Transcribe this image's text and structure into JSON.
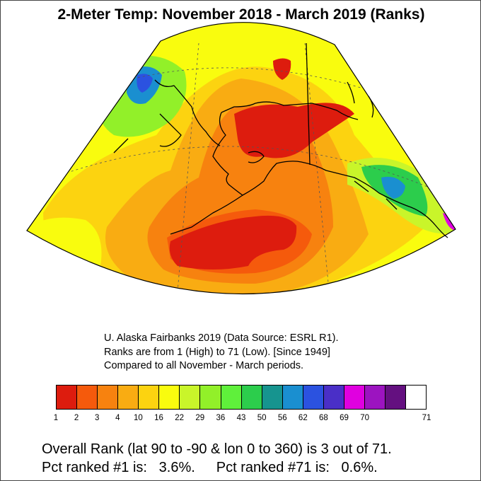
{
  "title": "2-Meter Temp: November 2018 - March 2019 (Ranks)",
  "source_lines": [
    "U. Alaska Fairbanks 2019 (Data Source: ESRL R1).",
    "Ranks are from 1 (High) to 71 (Low). [Since 1949]",
    "Compared to all November - March periods."
  ],
  "colorbar": {
    "colors": [
      "#dd1c0e",
      "#f55a0c",
      "#f7820f",
      "#f9ac12",
      "#fcd310",
      "#f9fc0e",
      "#c9f52a",
      "#92f029",
      "#5ff03b",
      "#2ccd4c",
      "#16948f",
      "#1a8fd0",
      "#2b52e0",
      "#4a2fc7",
      "#e000e0",
      "#9c14c0",
      "#641080",
      "#ffffff"
    ],
    "tick_labels": [
      "1",
      "2",
      "3",
      "4",
      "10",
      "16",
      "22",
      "29",
      "36",
      "43",
      "50",
      "56",
      "62",
      "68",
      "69",
      "70",
      "71"
    ]
  },
  "summary": {
    "line1": "Overall Rank (lat 90 to -90 & lon 0 to 360) is 3 out of 71.",
    "line2a": "Pct ranked #1 is:   3.6%.",
    "line2b": "Pct ranked #71 is:   0.6%."
  },
  "map_colors": {
    "rank1": "#dd1c0e",
    "rank2": "#f55a0c",
    "rank3": "#f7820f",
    "rank4": "#f9ac12",
    "rank10": "#fcd310",
    "rank16": "#f9fc0e",
    "rank22": "#c9f52a",
    "rank29": "#92f029",
    "rank36": "#5ff03b",
    "rank43": "#2ccd4c",
    "rank50": "#16948f",
    "rank56": "#1a8fd0",
    "rank62": "#2b52e0",
    "rank68": "#e000e0"
  }
}
